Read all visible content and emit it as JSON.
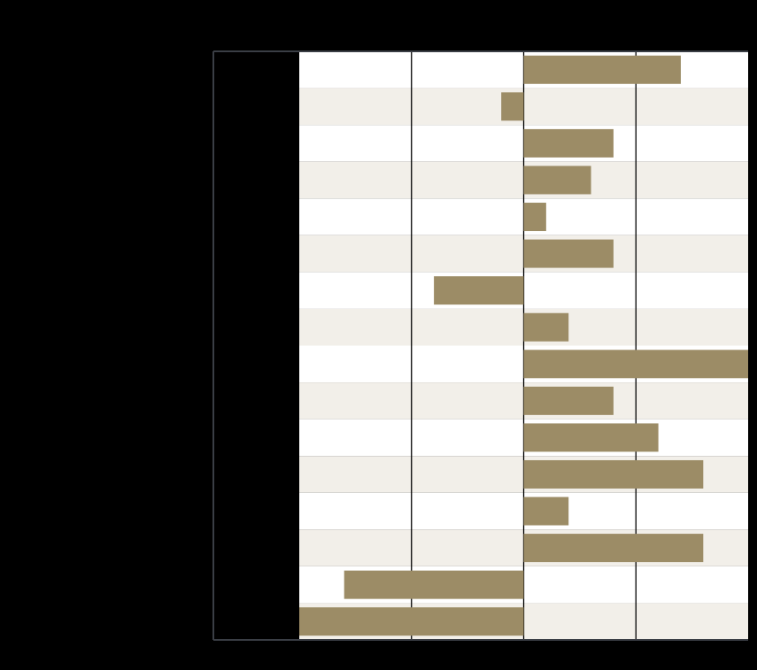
{
  "chart_data": {
    "type": "bar",
    "orientation": "horizontal",
    "title": "",
    "xlabel": "",
    "ylabel": "",
    "categories": [
      "",
      "",
      "",
      "",
      "",
      "",
      "",
      "",
      "",
      "",
      "",
      "",
      "",
      "",
      "",
      ""
    ],
    "values": [
      7,
      -1,
      4,
      3,
      1,
      4,
      -4,
      2,
      10,
      4,
      6,
      8,
      2,
      8,
      -8,
      -10
    ],
    "xlim": [
      -10,
      10
    ],
    "xticks": [
      -5,
      0,
      5
    ],
    "grid": "vertical",
    "legend": "none",
    "colors": {
      "bar": "#9c8c66",
      "band_light": "#ffffff",
      "band_dark": "#f2efe9",
      "gridline": "#000000",
      "frame": "#3a3e45",
      "background": "#000000"
    }
  }
}
